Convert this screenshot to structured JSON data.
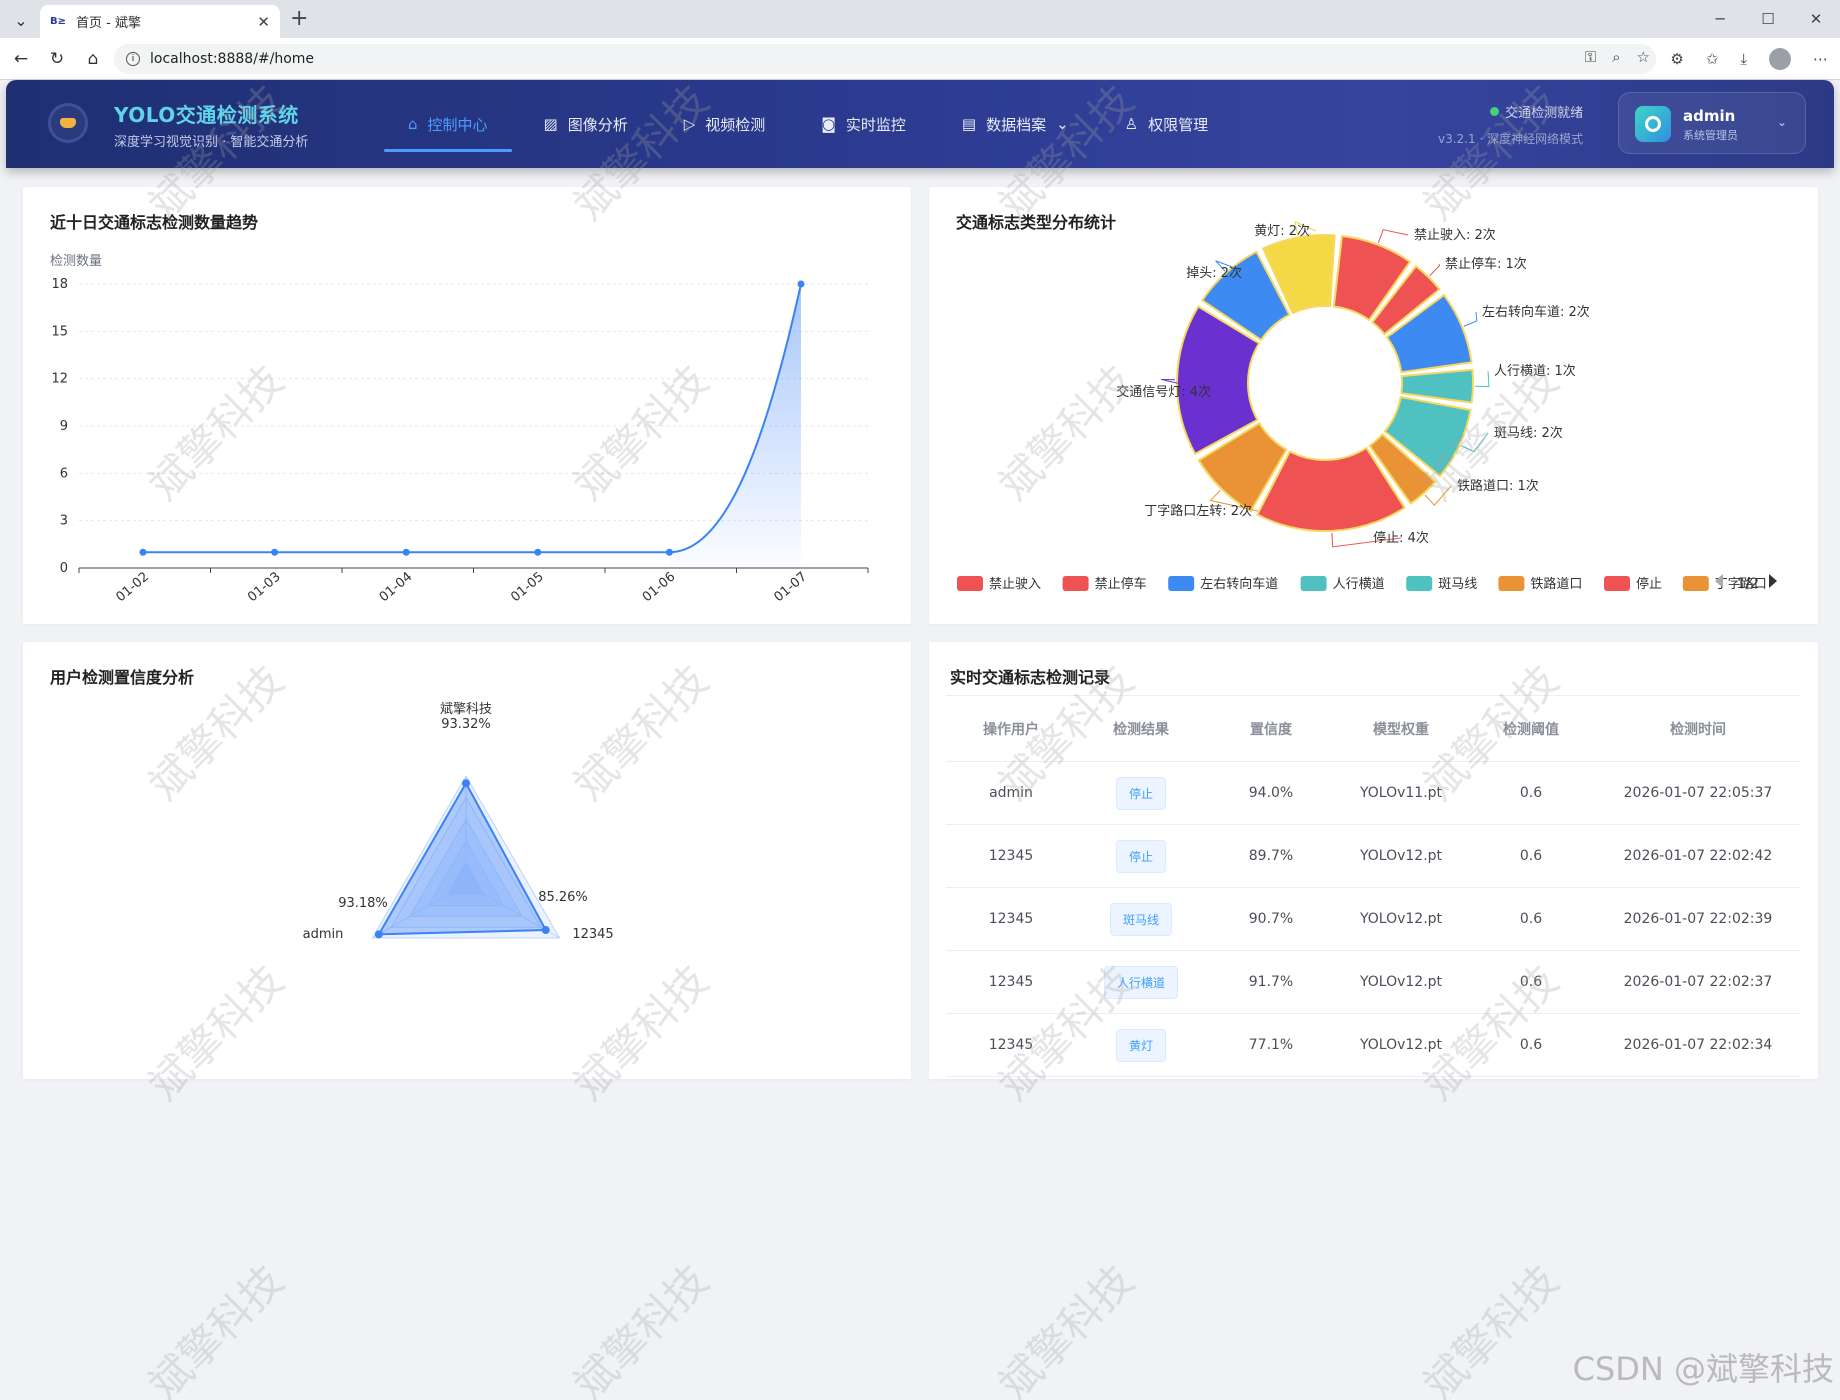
{
  "browser": {
    "tab_title": "首页 - 斌擎",
    "tab_favicon": "B≥",
    "url": "localhost:8888/#/home"
  },
  "header": {
    "title": "YOLO交通检测系统",
    "subtitle": "深度学习视觉识别 · 智能交通分析",
    "nav": [
      {
        "label": "控制中心",
        "icon": "home-icon",
        "active": true
      },
      {
        "label": "图像分析",
        "icon": "image-icon"
      },
      {
        "label": "视频检测",
        "icon": "play-icon"
      },
      {
        "label": "实时监控",
        "icon": "camera-icon"
      },
      {
        "label": "数据档案",
        "icon": "document-icon"
      },
      {
        "label": "权限管理",
        "icon": "user-icon"
      }
    ],
    "status": "交通检测就绪",
    "version": "v3.2.1 · 深度神经网络模式",
    "user_name": "admin",
    "user_role": "系统管理员"
  },
  "trend": {
    "title": "近十日交通标志检测数量趋势",
    "chart_data": {
      "type": "area",
      "ylabel": "检测数量",
      "categories": [
        "01-02",
        "01-03",
        "01-04",
        "01-05",
        "01-06",
        "01-07"
      ],
      "values": [
        1,
        1,
        1,
        1,
        1,
        18
      ],
      "y_ticks": [
        0,
        3,
        6,
        9,
        12,
        15,
        18
      ],
      "ylim": [
        0,
        18
      ],
      "color": "#3b82f6"
    }
  },
  "pie": {
    "title": "交通标志类型分布统计",
    "chart_data": {
      "type": "pie",
      "donut": true,
      "slices": [
        {
          "name": "禁止驶入",
          "value": 2,
          "label": "禁止驶入: 2次",
          "color": "#ee5253"
        },
        {
          "name": "禁止停车",
          "value": 1,
          "label": "禁止停车: 1次",
          "color": "#ee5253"
        },
        {
          "name": "左右转向车道",
          "value": 2,
          "label": "左右转向车道: 2次",
          "color": "#3d8bf2"
        },
        {
          "name": "人行横道",
          "value": 1,
          "label": "人行横道: 1次",
          "color": "#4fc1c1"
        },
        {
          "name": "斑马线",
          "value": 2,
          "label": "斑马线: 2次",
          "color": "#4fc1c1"
        },
        {
          "name": "铁路道口",
          "value": 1,
          "label": "铁路道口: 1次",
          "color": "#ea9236"
        },
        {
          "name": "停止",
          "value": 4,
          "label": "停止: 4次",
          "color": "#ee5253"
        },
        {
          "name": "丁字路口左转",
          "value": 2,
          "label": "丁字路口左转: 2次",
          "color": "#ea9236"
        },
        {
          "name": "交通信号灯",
          "value": 4,
          "label": "交通信号灯: 4次",
          "color": "#6a30d0"
        },
        {
          "name": "掉头",
          "value": 2,
          "label": "掉头: 2次",
          "color": "#3d8bf2"
        },
        {
          "name": "黄灯",
          "value": 2,
          "label": "黄灯: 2次",
          "color": "#f5d845"
        }
      ],
      "legend": {
        "position": "bottom",
        "items": [
          "禁止驶入",
          "禁止停车",
          "左右转向车道",
          "人行横道",
          "斑马线",
          "铁路道口",
          "停止",
          "丁字路口"
        ],
        "page": "1/2"
      }
    }
  },
  "radar": {
    "title": "用户检测置信度分析",
    "chart_data": {
      "type": "radar",
      "indicators": [
        "斌擎科技",
        "12345",
        "admin"
      ],
      "values": [
        93.32,
        85.26,
        93.18
      ],
      "value_labels": [
        "93.32%",
        "85.26%",
        "93.18%"
      ],
      "max": 100,
      "color": "#3b82f6"
    }
  },
  "records": {
    "title": "实时交通标志检测记录",
    "columns": [
      "操作用户",
      "检测结果",
      "置信度",
      "模型权重",
      "检测阈值",
      "检测时间"
    ],
    "rows": [
      [
        "admin",
        "停止",
        "94.0%",
        "YOLOv11.pt",
        "0.6",
        "2026-01-07 22:05:37"
      ],
      [
        "12345",
        "停止",
        "89.7%",
        "YOLOv12.pt",
        "0.6",
        "2026-01-07 22:02:42"
      ],
      [
        "12345",
        "斑马线",
        "90.7%",
        "YOLOv12.pt",
        "0.6",
        "2026-01-07 22:02:39"
      ],
      [
        "12345",
        "人行横道",
        "91.7%",
        "YOLOv12.pt",
        "0.6",
        "2026-01-07 22:02:37"
      ],
      [
        "12345",
        "黄灯",
        "77.1%",
        "YOLOv12.pt",
        "0.6",
        "2026-01-07 22:02:34"
      ]
    ]
  },
  "watermark": {
    "text": "斌擎科技",
    "corner": "CSDN @斌擎科技"
  }
}
